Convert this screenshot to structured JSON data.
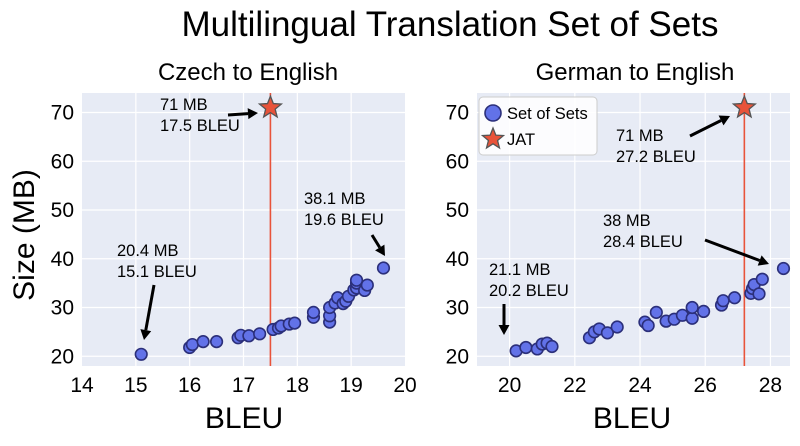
{
  "figure": {
    "title": "Multilingual Translation Set of Sets",
    "ylabel": "Size (MB)"
  },
  "colors": {
    "marker_fill": "#6272e8",
    "marker_edge": "#2b2f7a",
    "jat": "#e8533a",
    "plot_bg": "#e7ebf5"
  },
  "chart_data": [
    {
      "type": "scatter",
      "title": "Czech to English",
      "xlabel": "BLEU",
      "ylabel": "Size (MB)",
      "xlim": [
        14,
        20
      ],
      "ylim": [
        18,
        74
      ],
      "xticks": [
        14,
        15,
        16,
        17,
        18,
        19,
        20
      ],
      "yticks": [
        20,
        30,
        40,
        50,
        60,
        70
      ],
      "grid": true,
      "vline": 17.5,
      "series": [
        {
          "name": "Set of Sets",
          "marker": "circle",
          "points": [
            [
              15.1,
              20.4
            ],
            [
              16.0,
              21.8
            ],
            [
              16.05,
              22.4
            ],
            [
              16.25,
              23.0
            ],
            [
              16.5,
              23.0
            ],
            [
              16.9,
              23.8
            ],
            [
              16.95,
              24.3
            ],
            [
              17.1,
              24.2
            ],
            [
              17.3,
              24.6
            ],
            [
              17.55,
              25.5
            ],
            [
              17.65,
              25.8
            ],
            [
              17.7,
              26.2
            ],
            [
              17.85,
              26.6
            ],
            [
              17.95,
              26.8
            ],
            [
              18.3,
              28.0
            ],
            [
              18.3,
              29.0
            ],
            [
              18.6,
              27.0
            ],
            [
              18.6,
              28.3
            ],
            [
              18.6,
              30.0
            ],
            [
              18.7,
              30.9
            ],
            [
              18.75,
              32.0
            ],
            [
              18.85,
              30.8
            ],
            [
              18.9,
              31.3
            ],
            [
              18.95,
              32.3
            ],
            [
              19.05,
              33.6
            ],
            [
              19.1,
              34.0
            ],
            [
              19.1,
              35.0
            ],
            [
              19.1,
              35.6
            ],
            [
              19.25,
              33.5
            ],
            [
              19.3,
              34.6
            ],
            [
              19.6,
              38.1
            ]
          ]
        },
        {
          "name": "JAT",
          "marker": "star",
          "points": [
            [
              17.5,
              71
            ]
          ]
        }
      ],
      "annotations": [
        {
          "lines": [
            "71 MB",
            "17.5 BLEU"
          ],
          "target": [
            17.5,
            71
          ]
        },
        {
          "lines": [
            "38.1 MB",
            "19.6 BLEU"
          ],
          "target": [
            19.6,
            38.1
          ]
        },
        {
          "lines": [
            "20.4 MB",
            "15.1 BLEU"
          ],
          "target": [
            15.1,
            20.4
          ]
        }
      ]
    },
    {
      "type": "scatter",
      "title": "German to English",
      "xlabel": "BLEU",
      "ylabel": "",
      "xlim": [
        19,
        28.6
      ],
      "ylim": [
        18,
        74
      ],
      "xticks": [
        20,
        22,
        24,
        26,
        28
      ],
      "yticks": [
        20,
        30,
        40,
        50,
        60,
        70
      ],
      "grid": true,
      "vline": 27.2,
      "legend": {
        "placement": "upper-left",
        "entries": [
          "Set of Sets",
          "JAT"
        ]
      },
      "series": [
        {
          "name": "Set of Sets",
          "marker": "circle",
          "points": [
            [
              20.2,
              21.1
            ],
            [
              20.5,
              21.8
            ],
            [
              20.85,
              21.5
            ],
            [
              21.0,
              22.5
            ],
            [
              21.15,
              22.7
            ],
            [
              21.3,
              22.0
            ],
            [
              22.45,
              23.8
            ],
            [
              22.6,
              25.0
            ],
            [
              22.75,
              25.6
            ],
            [
              23.0,
              24.8
            ],
            [
              23.3,
              26.0
            ],
            [
              24.15,
              27.0
            ],
            [
              24.25,
              26.3
            ],
            [
              24.5,
              29.0
            ],
            [
              24.8,
              27.2
            ],
            [
              25.05,
              27.6
            ],
            [
              25.3,
              28.4
            ],
            [
              25.6,
              27.8
            ],
            [
              25.6,
              30.0
            ],
            [
              25.95,
              29.2
            ],
            [
              26.5,
              30.5
            ],
            [
              26.55,
              31.4
            ],
            [
              26.9,
              32.0
            ],
            [
              27.4,
              32.9
            ],
            [
              27.45,
              33.9
            ],
            [
              27.5,
              34.7
            ],
            [
              27.65,
              32.8
            ],
            [
              27.75,
              35.8
            ],
            [
              28.4,
              38.0
            ]
          ]
        },
        {
          "name": "JAT",
          "marker": "star",
          "points": [
            [
              27.2,
              71
            ]
          ]
        }
      ],
      "annotations": [
        {
          "lines": [
            "71 MB",
            "27.2 BLEU"
          ],
          "target": [
            27.2,
            71
          ]
        },
        {
          "lines": [
            "38 MB",
            "28.4 BLEU"
          ],
          "target": [
            28.4,
            38
          ]
        },
        {
          "lines": [
            "21.1 MB",
            "20.2 BLEU"
          ],
          "target": [
            20.2,
            21.1
          ]
        }
      ]
    }
  ]
}
